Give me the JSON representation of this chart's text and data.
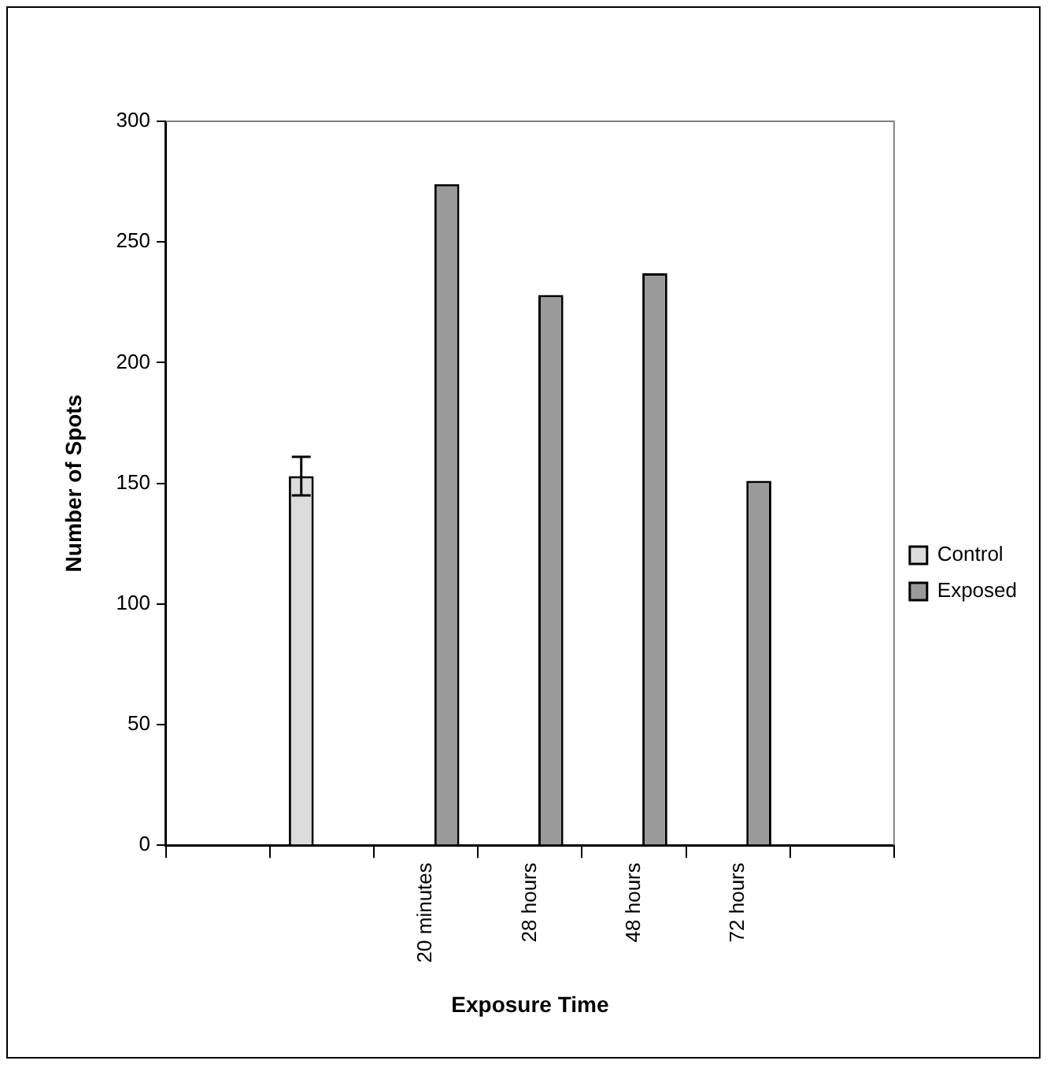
{
  "chart_data": {
    "type": "bar",
    "xlabel": "Exposure Time",
    "ylabel": "Number of Spots",
    "categories": [
      null,
      null,
      "20 minutes",
      "28 hours",
      "48 hours",
      "72 hours",
      null
    ],
    "series": [
      {
        "name": "Control",
        "color": "#dcdcdc",
        "values": [
          null,
          153,
          null,
          null,
          null,
          null,
          null
        ],
        "errors": [
          null,
          8,
          null,
          null,
          null,
          null,
          null
        ]
      },
      {
        "name": "Exposed",
        "color": "#9a9a9a",
        "values": [
          null,
          null,
          274,
          228,
          237,
          151,
          null
        ]
      }
    ],
    "ylim": [
      0,
      300
    ],
    "yticks": [
      0,
      50,
      100,
      150,
      200,
      250,
      300
    ],
    "grid": false,
    "legend": "right"
  }
}
